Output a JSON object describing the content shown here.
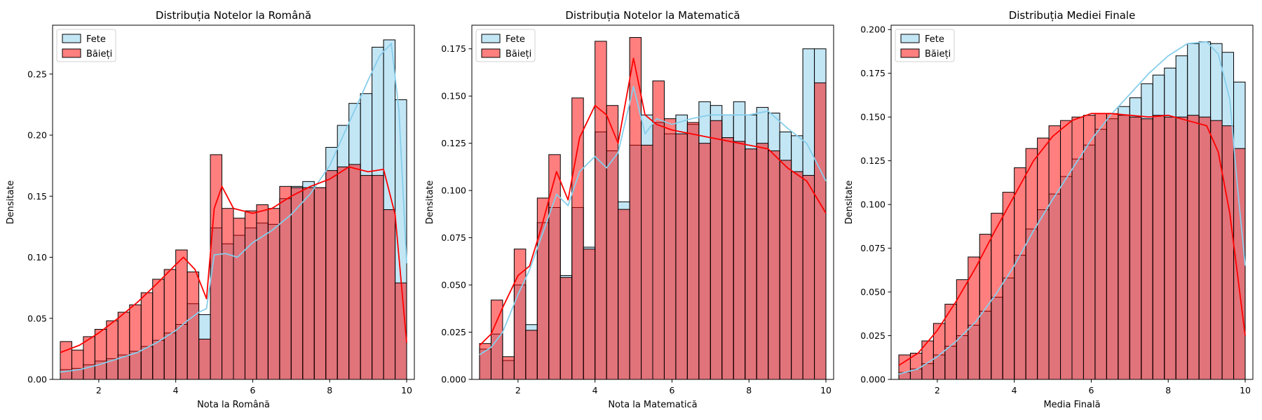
{
  "chart_data": [
    {
      "type": "histogram",
      "title": "Distribuția Notelor la Română",
      "xlabel": "Nota la Română",
      "ylabel": "Densitate",
      "xlim": [
        0.8,
        10.2
      ],
      "ylim": [
        0,
        0.29
      ],
      "xticks": [
        2,
        4,
        6,
        8,
        10
      ],
      "yticks": [
        0.0,
        0.05,
        0.1,
        0.15,
        0.2,
        0.25
      ],
      "bin_start": 1.0,
      "bin_width": 0.3,
      "legend": "top-left",
      "series": [
        {
          "name": "Fete",
          "color": "#87CEEB",
          "values": [
            0.008,
            0.009,
            0.012,
            0.015,
            0.017,
            0.02,
            0.023,
            0.027,
            0.032,
            0.038,
            0.045,
            0.062,
            0.053,
            0.124,
            0.111,
            0.118,
            0.124,
            0.128,
            0.127,
            0.148,
            0.158,
            0.162,
            0.157,
            0.19,
            0.208,
            0.226,
            0.234,
            0.272,
            0.278,
            0.229
          ],
          "kde": [
            [
              1.0,
              0.006
            ],
            [
              1.5,
              0.008
            ],
            [
              2.0,
              0.012
            ],
            [
              2.5,
              0.017
            ],
            [
              3.0,
              0.022
            ],
            [
              3.5,
              0.03
            ],
            [
              4.0,
              0.04
            ],
            [
              4.3,
              0.048
            ],
            [
              4.6,
              0.055
            ],
            [
              4.8,
              0.058
            ],
            [
              5.0,
              0.102
            ],
            [
              5.3,
              0.103
            ],
            [
              5.6,
              0.1
            ],
            [
              6.0,
              0.112
            ],
            [
              6.5,
              0.122
            ],
            [
              7.0,
              0.135
            ],
            [
              7.5,
              0.152
            ],
            [
              8.0,
              0.175
            ],
            [
              8.5,
              0.21
            ],
            [
              9.0,
              0.245
            ],
            [
              9.3,
              0.265
            ],
            [
              9.6,
              0.275
            ],
            [
              9.8,
              0.22
            ],
            [
              10.0,
              0.095
            ]
          ]
        },
        {
          "name": "Băieți",
          "color": "#FF0000",
          "values": [
            0.031,
            0.024,
            0.035,
            0.041,
            0.048,
            0.055,
            0.061,
            0.071,
            0.082,
            0.09,
            0.106,
            0.088,
            0.033,
            0.184,
            0.14,
            0.132,
            0.138,
            0.143,
            0.14,
            0.158,
            0.157,
            0.157,
            0.157,
            0.171,
            0.174,
            0.176,
            0.167,
            0.167,
            0.139,
            0.079
          ],
          "kde": [
            [
              1.0,
              0.022
            ],
            [
              1.5,
              0.028
            ],
            [
              2.0,
              0.038
            ],
            [
              2.5,
              0.05
            ],
            [
              3.0,
              0.063
            ],
            [
              3.5,
              0.078
            ],
            [
              4.0,
              0.094
            ],
            [
              4.2,
              0.1
            ],
            [
              4.5,
              0.09
            ],
            [
              4.8,
              0.066
            ],
            [
              5.0,
              0.14
            ],
            [
              5.2,
              0.158
            ],
            [
              5.5,
              0.14
            ],
            [
              6.0,
              0.136
            ],
            [
              6.5,
              0.14
            ],
            [
              7.0,
              0.15
            ],
            [
              7.5,
              0.158
            ],
            [
              8.0,
              0.164
            ],
            [
              8.5,
              0.174
            ],
            [
              9.0,
              0.17
            ],
            [
              9.4,
              0.172
            ],
            [
              9.7,
              0.135
            ],
            [
              10.0,
              0.03
            ]
          ]
        }
      ]
    },
    {
      "type": "histogram",
      "title": "Distribuția Notelor la Matematică",
      "xlabel": "Nota la Matematică",
      "ylabel": "Densitate",
      "xlim": [
        0.8,
        10.2
      ],
      "ylim": [
        0,
        0.1875
      ],
      "xticks": [
        2,
        4,
        6,
        8,
        10
      ],
      "yticks": [
        0.0,
        0.025,
        0.05,
        0.075,
        0.1,
        0.125,
        0.15,
        0.175
      ],
      "bin_start": 1.0,
      "bin_width": 0.3,
      "legend": "top-left",
      "series": [
        {
          "name": "Fete",
          "color": "#87CEEB",
          "values": [
            0.016,
            0.024,
            0.01,
            0.05,
            0.029,
            0.083,
            0.091,
            0.055,
            0.091,
            0.07,
            0.131,
            0.121,
            0.094,
            0.124,
            0.14,
            0.136,
            0.13,
            0.14,
            0.135,
            0.147,
            0.145,
            0.14,
            0.147,
            0.14,
            0.144,
            0.141,
            0.131,
            0.129,
            0.175,
            0.175
          ],
          "kde": [
            [
              1.0,
              0.013
            ],
            [
              1.3,
              0.017
            ],
            [
              1.6,
              0.025
            ],
            [
              2.0,
              0.045
            ],
            [
              2.3,
              0.058
            ],
            [
              2.6,
              0.075
            ],
            [
              3.0,
              0.098
            ],
            [
              3.3,
              0.092
            ],
            [
              3.6,
              0.11
            ],
            [
              4.0,
              0.118
            ],
            [
              4.3,
              0.112
            ],
            [
              4.6,
              0.12
            ],
            [
              5.0,
              0.155
            ],
            [
              5.3,
              0.13
            ],
            [
              5.6,
              0.138
            ],
            [
              6.0,
              0.135
            ],
            [
              6.5,
              0.138
            ],
            [
              7.0,
              0.14
            ],
            [
              7.5,
              0.14
            ],
            [
              8.0,
              0.14
            ],
            [
              8.5,
              0.142
            ],
            [
              9.0,
              0.133
            ],
            [
              9.5,
              0.125
            ],
            [
              10.0,
              0.105
            ]
          ]
        },
        {
          "name": "Băieți",
          "color": "#FF0000",
          "values": [
            0.019,
            0.042,
            0.012,
            0.069,
            0.026,
            0.096,
            0.119,
            0.054,
            0.149,
            0.069,
            0.179,
            0.145,
            0.09,
            0.181,
            0.124,
            0.158,
            0.138,
            0.13,
            0.136,
            0.125,
            0.137,
            0.128,
            0.126,
            0.122,
            0.125,
            0.121,
            0.116,
            0.11,
            0.108,
            0.157
          ],
          "kde": [
            [
              1.0,
              0.018
            ],
            [
              1.3,
              0.024
            ],
            [
              1.6,
              0.038
            ],
            [
              2.0,
              0.055
            ],
            [
              2.3,
              0.06
            ],
            [
              2.6,
              0.08
            ],
            [
              3.0,
              0.11
            ],
            [
              3.3,
              0.095
            ],
            [
              3.6,
              0.128
            ],
            [
              4.0,
              0.145
            ],
            [
              4.3,
              0.14
            ],
            [
              4.6,
              0.125
            ],
            [
              5.0,
              0.17
            ],
            [
              5.3,
              0.14
            ],
            [
              5.6,
              0.135
            ],
            [
              6.0,
              0.132
            ],
            [
              6.5,
              0.13
            ],
            [
              7.0,
              0.128
            ],
            [
              7.5,
              0.126
            ],
            [
              8.0,
              0.124
            ],
            [
              8.5,
              0.122
            ],
            [
              9.0,
              0.112
            ],
            [
              9.5,
              0.105
            ],
            [
              10.0,
              0.088
            ]
          ]
        }
      ]
    },
    {
      "type": "histogram",
      "title": "Distribuția Mediei Finale",
      "xlabel": "Media Finală",
      "ylabel": "Densitate",
      "xlim": [
        0.8,
        10.2
      ],
      "ylim": [
        0,
        0.2025
      ],
      "xticks": [
        2,
        4,
        6,
        8,
        10
      ],
      "yticks": [
        0.0,
        0.025,
        0.05,
        0.075,
        0.1,
        0.125,
        0.15,
        0.175,
        0.2
      ],
      "bin_start": 1.0,
      "bin_width": 0.3,
      "legend": "top-left",
      "series": [
        {
          "name": "Fete",
          "color": "#87CEEB",
          "values": [
            0.004,
            0.006,
            0.009,
            0.014,
            0.019,
            0.025,
            0.031,
            0.039,
            0.047,
            0.058,
            0.071,
            0.086,
            0.097,
            0.106,
            0.116,
            0.126,
            0.134,
            0.143,
            0.149,
            0.156,
            0.161,
            0.169,
            0.174,
            0.178,
            0.185,
            0.192,
            0.193,
            0.192,
            0.187,
            0.17
          ],
          "kde": [
            [
              1.0,
              0.003
            ],
            [
              1.5,
              0.006
            ],
            [
              2.0,
              0.013
            ],
            [
              2.5,
              0.022
            ],
            [
              3.0,
              0.033
            ],
            [
              3.5,
              0.048
            ],
            [
              4.0,
              0.065
            ],
            [
              4.5,
              0.085
            ],
            [
              5.0,
              0.103
            ],
            [
              5.5,
              0.12
            ],
            [
              6.0,
              0.137
            ],
            [
              6.5,
              0.151
            ],
            [
              7.0,
              0.163
            ],
            [
              7.5,
              0.175
            ],
            [
              8.0,
              0.185
            ],
            [
              8.5,
              0.192
            ],
            [
              9.0,
              0.193
            ],
            [
              9.3,
              0.186
            ],
            [
              9.6,
              0.16
            ],
            [
              9.8,
              0.11
            ],
            [
              10.0,
              0.065
            ]
          ]
        },
        {
          "name": "Băieți",
          "color": "#FF0000",
          "values": [
            0.014,
            0.015,
            0.022,
            0.032,
            0.043,
            0.057,
            0.07,
            0.083,
            0.095,
            0.107,
            0.121,
            0.132,
            0.138,
            0.145,
            0.148,
            0.15,
            0.151,
            0.152,
            0.152,
            0.151,
            0.15,
            0.149,
            0.151,
            0.15,
            0.15,
            0.151,
            0.15,
            0.148,
            0.145,
            0.132
          ],
          "kde": [
            [
              1.0,
              0.008
            ],
            [
              1.5,
              0.015
            ],
            [
              2.0,
              0.028
            ],
            [
              2.5,
              0.045
            ],
            [
              3.0,
              0.064
            ],
            [
              3.5,
              0.085
            ],
            [
              4.0,
              0.105
            ],
            [
              4.5,
              0.125
            ],
            [
              5.0,
              0.139
            ],
            [
              5.5,
              0.148
            ],
            [
              6.0,
              0.152
            ],
            [
              6.5,
              0.152
            ],
            [
              7.0,
              0.151
            ],
            [
              7.5,
              0.15
            ],
            [
              8.0,
              0.151
            ],
            [
              8.5,
              0.148
            ],
            [
              9.0,
              0.145
            ],
            [
              9.3,
              0.13
            ],
            [
              9.6,
              0.095
            ],
            [
              9.8,
              0.06
            ],
            [
              10.0,
              0.025
            ]
          ]
        }
      ]
    }
  ]
}
